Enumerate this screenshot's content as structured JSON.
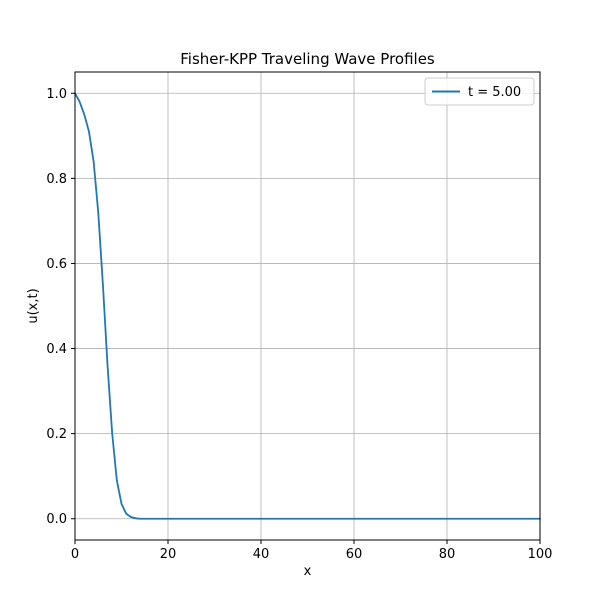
{
  "chart_data": {
    "type": "line",
    "title": "Fisher-KPP Traveling Wave Profiles",
    "xlabel": "x",
    "ylabel": "u(x,t)",
    "xlim": [
      0,
      100
    ],
    "ylim": [
      -0.05,
      1.05
    ],
    "xticks": [
      0,
      20,
      40,
      60,
      80,
      100
    ],
    "yticks": [
      0.0,
      0.2,
      0.4,
      0.6,
      0.8,
      1.0
    ],
    "xtick_labels": [
      "0",
      "20",
      "40",
      "60",
      "80",
      "100"
    ],
    "ytick_labels": [
      "0.0",
      "0.2",
      "0.4",
      "0.6",
      "0.8",
      "1.0"
    ],
    "grid": true,
    "legend_position": "top-right",
    "series": [
      {
        "name": "t = 5.00",
        "color": "#1f77b4",
        "x": [
          0,
          1,
          2,
          3,
          4,
          5,
          6,
          7,
          8,
          9,
          10,
          11,
          12,
          13,
          14,
          15,
          20,
          30,
          40,
          50,
          60,
          70,
          80,
          90,
          100
        ],
        "y": [
          1.0,
          0.98,
          0.95,
          0.91,
          0.84,
          0.72,
          0.55,
          0.36,
          0.2,
          0.09,
          0.035,
          0.012,
          0.004,
          0.001,
          0.0,
          0.0,
          0.0,
          0.0,
          0.0,
          0.0,
          0.0,
          0.0,
          0.0,
          0.0,
          0.0
        ]
      }
    ]
  }
}
